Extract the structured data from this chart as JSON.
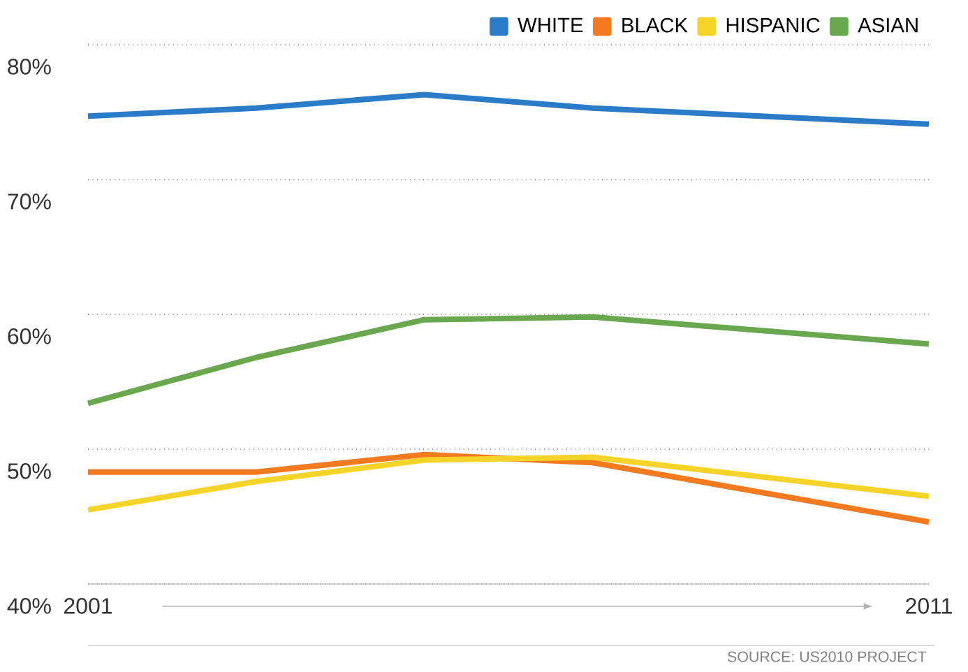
{
  "chart_data": {
    "type": "line",
    "x": [
      2001,
      2003,
      2005,
      2007,
      2011
    ],
    "series": [
      {
        "name": "WHITE",
        "color": "#2a7bc8",
        "values": [
          74.7,
          75.3,
          76.3,
          75.3,
          74.1
        ]
      },
      {
        "name": "BLACK",
        "color": "#f47a20",
        "values": [
          48.3,
          48.3,
          49.6,
          49.0,
          44.6
        ]
      },
      {
        "name": "HISPANIC",
        "color": "#f5d328",
        "values": [
          45.5,
          47.6,
          49.2,
          49.4,
          46.5
        ]
      },
      {
        "name": "ASIAN",
        "color": "#6aa84f",
        "values": [
          53.4,
          56.8,
          59.6,
          59.8,
          57.8
        ]
      }
    ],
    "xlim": [
      2001,
      2011
    ],
    "xticks": [
      2001,
      2011
    ],
    "ylim": [
      40,
      80
    ],
    "yticks": [
      {
        "value": 40,
        "label": "40%"
      },
      {
        "value": 50,
        "label": "50%"
      },
      {
        "value": 60,
        "label": "60%"
      },
      {
        "value": 70,
        "label": "70%"
      },
      {
        "value": 80,
        "label": "80%"
      }
    ],
    "grid": "y",
    "legend": "top right",
    "marker": "none",
    "line_style": "solid",
    "annotations": [
      "SOURCE: US2010 PROJECT"
    ]
  }
}
